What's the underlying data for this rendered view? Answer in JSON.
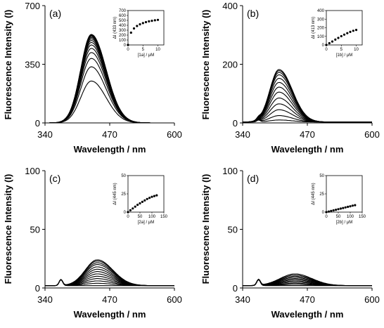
{
  "chart_data": [
    {
      "panel": "(a)",
      "type": "line",
      "xlabel": "Wavelength / nm",
      "ylabel": "Fluorescence Intensity (I)",
      "xlim": [
        340,
        600
      ],
      "ylim": [
        0,
        700
      ],
      "xticks": [
        "340",
        "470",
        "600"
      ],
      "yticks": [
        "0",
        "350",
        "700"
      ],
      "baseline": 0,
      "peak_nm": 433,
      "width_l": 30,
      "width_r": 42,
      "bump": 0,
      "series_peaks": [
        250,
        335,
        385,
        420,
        445,
        465,
        480,
        492,
        502,
        510,
        516,
        521,
        525,
        528
      ],
      "inset": {
        "type": "scatter",
        "ylabel": "ΔI (433 nm)",
        "xlabel": "[1a] / μM",
        "xlim": [
          0,
          12
        ],
        "ylim": [
          0,
          700
        ],
        "xticks": [
          "0",
          "5",
          "10"
        ],
        "yticks": [
          "0",
          "100",
          "200",
          "300",
          "400",
          "500",
          "600",
          "700"
        ],
        "x": [
          0,
          1,
          2,
          3,
          4,
          5,
          6,
          7,
          8,
          9,
          10
        ],
        "y": [
          0,
          250,
          335,
          385,
          420,
          445,
          465,
          480,
          492,
          502,
          510
        ]
      }
    },
    {
      "panel": "(b)",
      "type": "line",
      "xlabel": "Wavelength / nm",
      "ylabel": "Fluorescence Intensity (I)",
      "xlim": [
        340,
        600
      ],
      "ylim": [
        0,
        400
      ],
      "xticks": [
        "340",
        "470",
        "600"
      ],
      "yticks": [
        "0",
        "200",
        "400"
      ],
      "baseline": 3,
      "peak_nm": 413,
      "width_l": 26,
      "width_r": 38,
      "bump": 6,
      "series_peaks": [
        10,
        25,
        45,
        65,
        85,
        105,
        122,
        138,
        152,
        164,
        172,
        178,
        182
      ],
      "inset": {
        "type": "scatter",
        "ylabel": "ΔI (413 nm)",
        "xlabel": "[1b] / μM",
        "xlim": [
          0,
          12
        ],
        "ylim": [
          0,
          400
        ],
        "xticks": [
          "0",
          "5",
          "10"
        ],
        "yticks": [
          "0",
          "100",
          "200",
          "300",
          "400"
        ],
        "x": [
          0,
          1,
          2,
          3,
          4,
          5,
          6,
          7,
          8,
          9,
          10
        ],
        "y": [
          0,
          20,
          40,
          62,
          82,
          102,
          120,
          137,
          152,
          165,
          175
        ]
      }
    },
    {
      "panel": "(c)",
      "type": "line",
      "xlabel": "Wavelength / nm",
      "ylabel": "Fluorescence Intensity (I)",
      "xlim": [
        340,
        600
      ],
      "ylim": [
        0,
        100
      ],
      "xticks": [
        "340",
        "470",
        "600"
      ],
      "yticks": [
        "0",
        "50",
        "100"
      ],
      "baseline": 2,
      "peak_nm": 445,
      "width_l": 34,
      "width_r": 44,
      "bump": 5,
      "series_peaks": [
        2,
        4,
        6,
        8,
        10,
        12,
        14,
        16,
        18,
        20,
        21.5,
        23,
        24
      ],
      "inset": {
        "type": "scatter",
        "ylabel": "ΔI (445 nm)",
        "xlabel": "[2a] / μM",
        "xlim": [
          0,
          150
        ],
        "ylim": [
          0,
          50
        ],
        "xticks": [
          "0",
          "50",
          "100",
          "150"
        ],
        "yticks": [
          "0",
          "25",
          "50"
        ],
        "x": [
          0,
          10,
          20,
          30,
          40,
          50,
          60,
          70,
          80,
          90,
          100,
          110,
          120
        ],
        "y": [
          0,
          2.5,
          5,
          7.5,
          10,
          12,
          14,
          16,
          18,
          19.5,
          21,
          22,
          23
        ]
      }
    },
    {
      "panel": "(d)",
      "type": "line",
      "xlabel": "Wavelength / nm",
      "ylabel": "Fluorescence Intensity (I)",
      "xlim": [
        340,
        600
      ],
      "ylim": [
        0,
        100
      ],
      "xticks": [
        "340",
        "470",
        "600"
      ],
      "yticks": [
        "0",
        "50",
        "100"
      ],
      "baseline": 2,
      "peak_nm": 445,
      "width_l": 42,
      "width_r": 48,
      "bump": 5,
      "series_peaks": [
        2,
        3,
        4,
        5,
        6,
        7,
        8,
        9,
        10,
        11,
        12
      ],
      "inset": {
        "type": "scatter",
        "ylabel": "ΔI (445 nm)",
        "xlabel": "[2b] / μM",
        "xlim": [
          0,
          150
        ],
        "ylim": [
          0,
          50
        ],
        "xticks": [
          "0",
          "50",
          "100",
          "150"
        ],
        "yticks": [
          "0",
          "25",
          "50"
        ],
        "x": [
          0,
          10,
          20,
          30,
          40,
          50,
          60,
          70,
          80,
          90,
          100,
          110,
          120
        ],
        "y": [
          0,
          0.8,
          1.6,
          2.4,
          3.2,
          4,
          4.8,
          5.6,
          6.4,
          7.2,
          8,
          8.8,
          9.5
        ]
      }
    }
  ]
}
